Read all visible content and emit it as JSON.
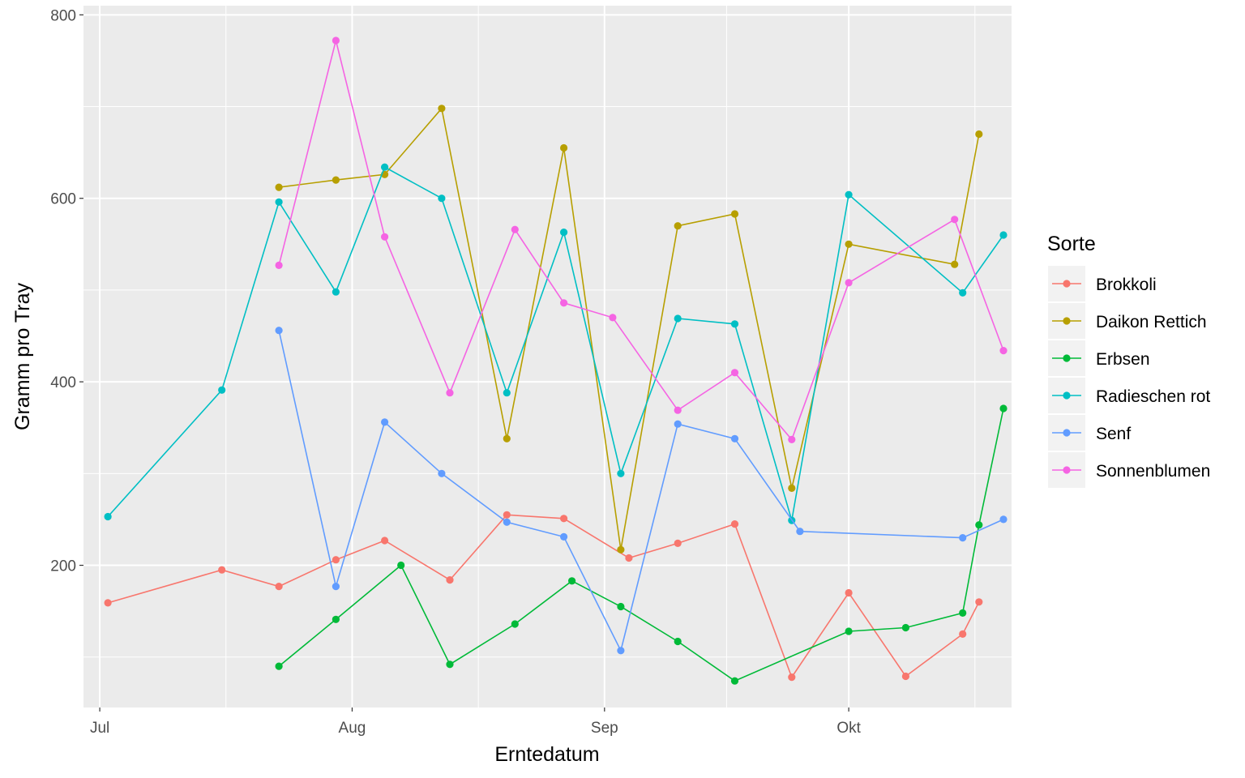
{
  "chart_data": {
    "type": "line",
    "xlabel": "Erntedatum",
    "ylabel": "Gramm pro Tray",
    "x_range": [
      "2020-06-29",
      "2020-10-21"
    ],
    "ylim": [
      45,
      810
    ],
    "y_ticks": [
      200,
      400,
      600,
      800
    ],
    "x_ticks": [
      {
        "date": "2020-07-01",
        "label": "Jul"
      },
      {
        "date": "2020-08-01",
        "label": "Aug"
      },
      {
        "date": "2020-09-01",
        "label": "Sep"
      },
      {
        "date": "2020-10-01",
        "label": "Okt"
      }
    ],
    "grid": true,
    "legend": {
      "title": "Sorte",
      "position": "right"
    },
    "series": [
      {
        "name": "Brokkoli",
        "color": "#F8766D",
        "points": [
          [
            "2020-07-02",
            159
          ],
          [
            "2020-07-16",
            195
          ],
          [
            "2020-07-23",
            177
          ],
          [
            "2020-07-30",
            206
          ],
          [
            "2020-08-05",
            227
          ],
          [
            "2020-08-13",
            184
          ],
          [
            "2020-08-20",
            255
          ],
          [
            "2020-08-27",
            251
          ],
          [
            "2020-09-04",
            208
          ],
          [
            "2020-09-10",
            224
          ],
          [
            "2020-09-17",
            245
          ],
          [
            "2020-09-24",
            78
          ],
          [
            "2020-10-01",
            170
          ],
          [
            "2020-10-08",
            79
          ],
          [
            "2020-10-15",
            125
          ],
          [
            "2020-10-17",
            160
          ]
        ]
      },
      {
        "name": "Daikon Rettich",
        "color": "#B79F00",
        "points": [
          [
            "2020-07-23",
            612
          ],
          [
            "2020-07-30",
            620
          ],
          [
            "2020-08-05",
            626
          ],
          [
            "2020-08-12",
            698
          ],
          [
            "2020-08-20",
            338
          ],
          [
            "2020-08-27",
            655
          ],
          [
            "2020-09-03",
            217
          ],
          [
            "2020-09-10",
            570
          ],
          [
            "2020-09-17",
            583
          ],
          [
            "2020-09-24",
            284
          ],
          [
            "2020-10-01",
            550
          ],
          [
            "2020-10-14",
            528
          ],
          [
            "2020-10-17",
            670
          ]
        ]
      },
      {
        "name": "Erbsen",
        "color": "#00BA38",
        "points": [
          [
            "2020-07-23",
            90
          ],
          [
            "2020-07-30",
            141
          ],
          [
            "2020-08-07",
            200
          ],
          [
            "2020-08-13",
            92
          ],
          [
            "2020-08-21",
            136
          ],
          [
            "2020-08-28",
            183
          ],
          [
            "2020-09-03",
            155
          ],
          [
            "2020-09-10",
            117
          ],
          [
            "2020-09-17",
            74
          ],
          [
            "2020-10-01",
            128
          ],
          [
            "2020-10-08",
            132
          ],
          [
            "2020-10-15",
            148
          ],
          [
            "2020-10-17",
            244
          ],
          [
            "2020-10-20",
            371
          ]
        ]
      },
      {
        "name": "Radieschen rot",
        "color": "#00BFC4",
        "points": [
          [
            "2020-07-02",
            253
          ],
          [
            "2020-07-16",
            391
          ],
          [
            "2020-07-23",
            596
          ],
          [
            "2020-07-30",
            498
          ],
          [
            "2020-08-05",
            634
          ],
          [
            "2020-08-12",
            600
          ],
          [
            "2020-08-20",
            388
          ],
          [
            "2020-08-27",
            563
          ],
          [
            "2020-09-03",
            300
          ],
          [
            "2020-09-10",
            469
          ],
          [
            "2020-09-17",
            463
          ],
          [
            "2020-09-24",
            249
          ],
          [
            "2020-10-01",
            604
          ],
          [
            "2020-10-15",
            497
          ],
          [
            "2020-10-20",
            560
          ]
        ]
      },
      {
        "name": "Senf",
        "color": "#619CFF",
        "points": [
          [
            "2020-07-23",
            456
          ],
          [
            "2020-07-30",
            177
          ],
          [
            "2020-08-05",
            356
          ],
          [
            "2020-08-12",
            300
          ],
          [
            "2020-08-20",
            247
          ],
          [
            "2020-08-27",
            231
          ],
          [
            "2020-09-03",
            107
          ],
          [
            "2020-09-10",
            354
          ],
          [
            "2020-09-17",
            338
          ],
          [
            "2020-09-25",
            237
          ],
          [
            "2020-10-15",
            230
          ],
          [
            "2020-10-20",
            250
          ]
        ]
      },
      {
        "name": "Sonnenblumen",
        "color": "#F564E3",
        "points": [
          [
            "2020-07-23",
            527
          ],
          [
            "2020-07-30",
            772
          ],
          [
            "2020-08-05",
            558
          ],
          [
            "2020-08-13",
            388
          ],
          [
            "2020-08-21",
            566
          ],
          [
            "2020-08-27",
            486
          ],
          [
            "2020-09-02",
            470
          ],
          [
            "2020-09-10",
            369
          ],
          [
            "2020-09-17",
            410
          ],
          [
            "2020-09-24",
            337
          ],
          [
            "2020-10-01",
            508
          ],
          [
            "2020-10-14",
            577
          ],
          [
            "2020-10-20",
            434
          ]
        ]
      }
    ]
  }
}
